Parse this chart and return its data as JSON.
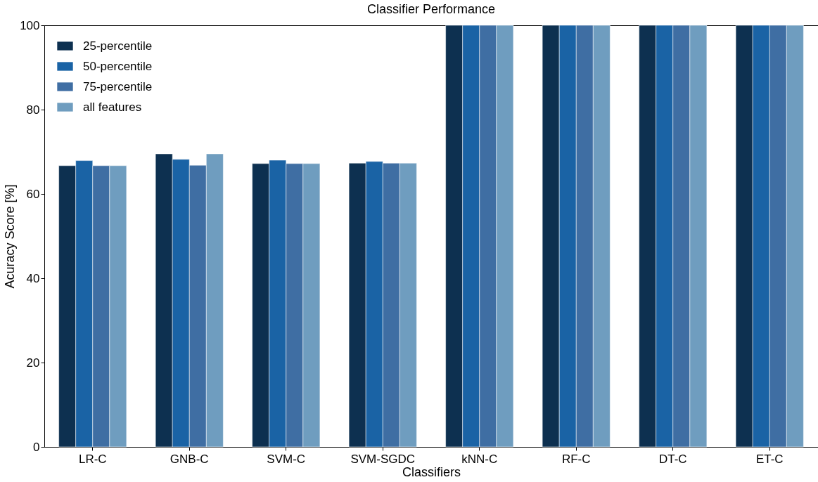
{
  "chart_data": {
    "type": "bar",
    "title": "Classifier Performance",
    "xlabel": "Classifiers",
    "ylabel": "Acuracy Score [%]",
    "categories": [
      "LR-C",
      "GNB-C",
      "SVM-C",
      "SVM-SGDC",
      "kNN-C",
      "RF-C",
      "DT-C",
      "ET-C"
    ],
    "series": [
      {
        "name": "25-percentile",
        "color": "#0d3050",
        "values": [
          66.7,
          69.5,
          67.2,
          67.3,
          100,
          100,
          100,
          100
        ]
      },
      {
        "name": "50-percentile",
        "color": "#1a63a5",
        "values": [
          67.9,
          68.2,
          68.0,
          67.7,
          100,
          100,
          100,
          100
        ]
      },
      {
        "name": "75-percentile",
        "color": "#3f6ea3",
        "values": [
          66.7,
          66.8,
          67.2,
          67.3,
          100,
          100,
          100,
          100
        ]
      },
      {
        "name": "all features",
        "color": "#6f9dbf",
        "values": [
          66.7,
          69.5,
          67.2,
          67.3,
          100,
          100,
          100,
          100
        ]
      }
    ],
    "ylim": [
      0,
      100
    ],
    "yticks": [
      0,
      20,
      40,
      60,
      80,
      100
    ],
    "grid": false,
    "legend": "top left"
  }
}
